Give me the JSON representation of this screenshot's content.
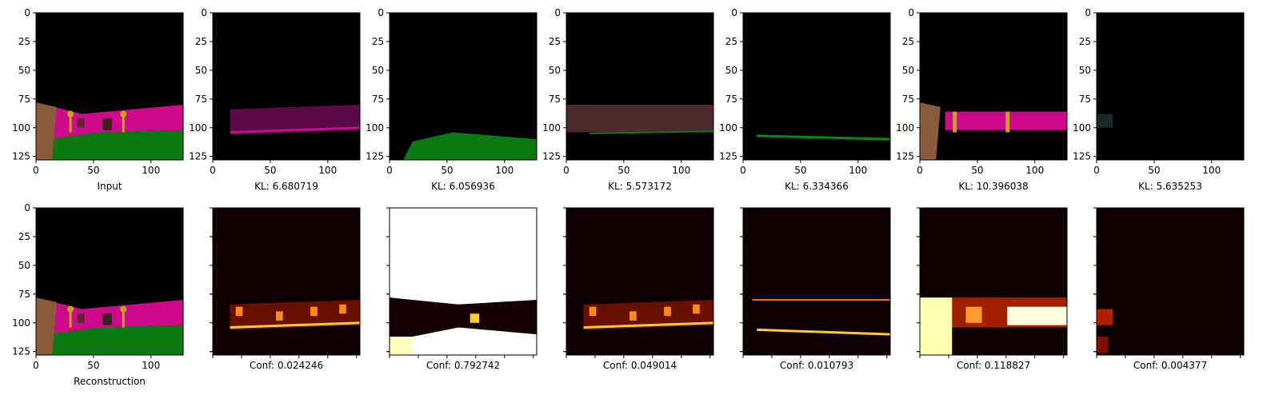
{
  "chart_data": {
    "type": "image-grid",
    "ticks": [
      "0",
      "25",
      "50",
      "75",
      "100",
      "125"
    ],
    "xticks": [
      "0",
      "50",
      "100"
    ],
    "rows": [
      {
        "panels": [
          {
            "label": "Input",
            "kind": "input-image",
            "axes": "xy",
            "band_top": 75,
            "band_bottom": 105,
            "wall": "#cc0a8a"
          },
          {
            "label": "KL: 6.680719",
            "kind": "component",
            "axes": "xy",
            "band_top": 78,
            "band_bottom": 102,
            "intensity": 0.55
          },
          {
            "label": "KL: 6.056936",
            "kind": "component-floor",
            "axes": "xy"
          },
          {
            "label": "KL: 5.573172",
            "kind": "component-room",
            "axes": "xy"
          },
          {
            "label": "KL: 6.334366",
            "kind": "component-line",
            "axes": "xy"
          },
          {
            "label": "KL: 10.396038",
            "kind": "component-wall",
            "axes": "xy"
          },
          {
            "label": "KL: 5.635253",
            "kind": "component-dark",
            "axes": "xy"
          }
        ]
      },
      {
        "panels": [
          {
            "label": "Reconstruction",
            "kind": "recon-image",
            "axes": "xy"
          },
          {
            "label": "Conf: 0.024246",
            "kind": "mask",
            "axes": "none",
            "value": 0.024246
          },
          {
            "label": "Conf: 0.792742",
            "kind": "mask-inverse",
            "axes": "none",
            "value": 0.792742
          },
          {
            "label": "Conf: 0.049014",
            "kind": "mask",
            "axes": "none",
            "value": 0.049014
          },
          {
            "label": "Conf: 0.010793",
            "kind": "mask-line",
            "axes": "none",
            "value": 0.010793
          },
          {
            "label": "Conf: 0.118827",
            "kind": "mask-wall",
            "axes": "none",
            "value": 0.118827
          },
          {
            "label": "Conf: 0.004377",
            "kind": "mask-dark",
            "axes": "none",
            "value": 0.004377
          }
        ]
      }
    ],
    "image_range": [
      0,
      128
    ],
    "colors": {
      "wall": "#cc0a8a",
      "floor": "#0b7a14",
      "key": "#c8a21a",
      "sky": "#000000",
      "hot_low": "#1a0000",
      "hot_high": "#ffffe0"
    }
  }
}
